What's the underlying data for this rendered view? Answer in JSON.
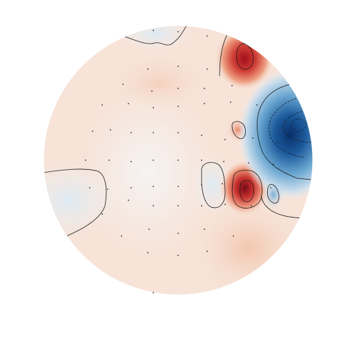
{
  "topomap": {
    "colormap": "RdBu_r",
    "colors": {
      "neutral": "#f4f1ef",
      "light_red": "#f6dccd",
      "mid_red": "#ef9a7f",
      "strong_red": "#c0392b",
      "darkest_red": "#8b0d1a",
      "light_blue": "#dde9f2",
      "mid_blue": "#6aa6d0",
      "strong_blue": "#2166ac",
      "darkest_blue": "#08306b",
      "contour": "#1a1a1a",
      "sensor": "#222222"
    }
  }
}
